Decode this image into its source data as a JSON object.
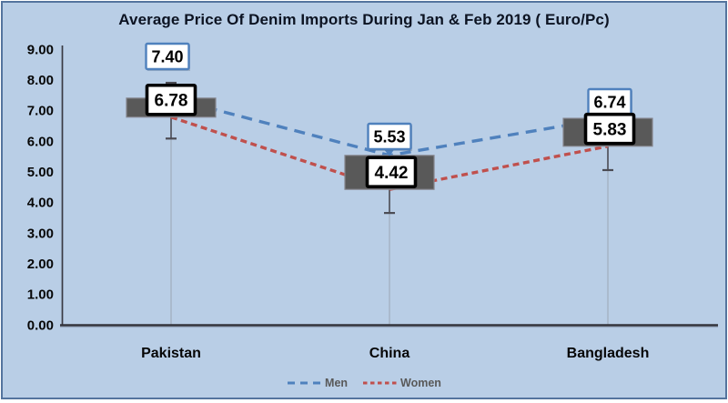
{
  "chart_data": {
    "type": "line",
    "subtype": "dashed lines with up-down bars, data label boxes, whiskers and drop lines",
    "title": "Average Price Of Denim Imports During Jan & Feb 2019 ( Euro/Pc)",
    "categories": [
      "Pakistan",
      "China",
      "Bangladesh"
    ],
    "series": [
      {
        "name": "Men",
        "values": [
          7.4,
          5.53,
          6.74
        ],
        "labels": [
          "7.40",
          "5.53",
          "6.74"
        ],
        "color": "#4f81bd",
        "line_style": "dashed-long",
        "label_box_border_color": "#4f81bd"
      },
      {
        "name": "Women",
        "values": [
          6.78,
          4.42,
          5.83
        ],
        "labels": [
          "6.78",
          "4.42",
          "5.83"
        ],
        "color": "#c0504d",
        "line_style": "dashed-short",
        "label_box_border_color": "#000000"
      }
    ],
    "xlabel": "",
    "ylabel": "",
    "ylim": [
      0,
      9
    ],
    "ytick_labels": [
      "9.00",
      "8.00",
      "7.00",
      "6.00",
      "5.00",
      "4.00",
      "3.00",
      "2.00",
      "1.00",
      "0.00"
    ],
    "grid": false,
    "legend_position": "bottom",
    "updown_bars": {
      "color": "#595959",
      "between": [
        "Men",
        "Women"
      ]
    },
    "error_whiskers": [
      {
        "category": "Pakistan",
        "upper": 7.9,
        "lower": 6.08
      },
      {
        "category": "China",
        "upper": null,
        "lower": 3.65
      },
      {
        "category": "Bangladesh",
        "upper": null,
        "lower": 5.05
      }
    ],
    "drop_lines": true,
    "background_color": "#b9cee6",
    "frame_border_color": "#54749e"
  }
}
